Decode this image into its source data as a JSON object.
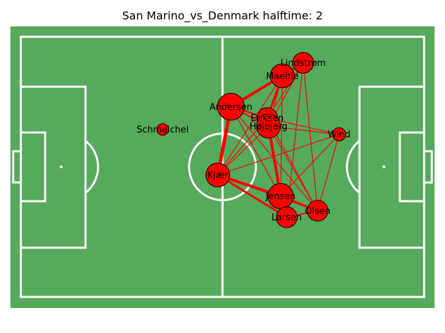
{
  "title": "San Marino_vs_Denmark halftime: 2",
  "colors": {
    "pitch": "#55aa5b",
    "lines": "#ffffff",
    "node": "#ff0000",
    "node_edge": "#000000",
    "edge": "#ff0000"
  },
  "chart_data": {
    "type": "network",
    "pitch": {
      "length": 120,
      "width": 80
    },
    "nodes": [
      {
        "name": "Lindstrøm",
        "x": 84.0,
        "y": 72.0,
        "size": 1.0
      },
      {
        "name": "Maehle",
        "x": 77.8,
        "y": 68.0,
        "size": 1.2
      },
      {
        "name": "Andersen",
        "x": 62.5,
        "y": 58.5,
        "size": 1.4
      },
      {
        "name": "Eriksen",
        "x": 73.3,
        "y": 55.0,
        "size": 1.0
      },
      {
        "name": "Højbjerg",
        "x": 73.7,
        "y": 52.5,
        "size": 1.2
      },
      {
        "name": "Schmeichel",
        "x": 42.2,
        "y": 51.5,
        "size": 0.4
      },
      {
        "name": "Wind",
        "x": 94.7,
        "y": 50.0,
        "size": 0.5
      },
      {
        "name": "Kjær",
        "x": 58.6,
        "y": 37.5,
        "size": 1.2
      },
      {
        "name": "Jensen",
        "x": 77.3,
        "y": 31.0,
        "size": 1.3
      },
      {
        "name": "Olsen",
        "x": 88.3,
        "y": 26.5,
        "size": 1.0
      },
      {
        "name": "Larsen",
        "x": 79.1,
        "y": 24.5,
        "size": 1.0
      }
    ],
    "edges": [
      {
        "from": "Andersen",
        "to": "Maehle",
        "weight": 4
      },
      {
        "from": "Andersen",
        "to": "Kjær",
        "weight": 5
      },
      {
        "from": "Andersen",
        "to": "Eriksen",
        "weight": 2
      },
      {
        "from": "Andersen",
        "to": "Højbjerg",
        "weight": 2
      },
      {
        "from": "Andersen",
        "to": "Jensen",
        "weight": 1
      },
      {
        "from": "Andersen",
        "to": "Lindstrøm",
        "weight": 1
      },
      {
        "from": "Andersen",
        "to": "Olsen",
        "weight": 1
      },
      {
        "from": "Maehle",
        "to": "Lindstrøm",
        "weight": 3
      },
      {
        "from": "Maehle",
        "to": "Eriksen",
        "weight": 3
      },
      {
        "from": "Maehle",
        "to": "Højbjerg",
        "weight": 1
      },
      {
        "from": "Maehle",
        "to": "Jensen",
        "weight": 1
      },
      {
        "from": "Maehle",
        "to": "Kjær",
        "weight": 1
      },
      {
        "from": "Lindstrøm",
        "to": "Eriksen",
        "weight": 1
      },
      {
        "from": "Lindstrøm",
        "to": "Højbjerg",
        "weight": 1
      },
      {
        "from": "Lindstrøm",
        "to": "Olsen",
        "weight": 1
      },
      {
        "from": "Lindstrøm",
        "to": "Larsen",
        "weight": 1
      },
      {
        "from": "Eriksen",
        "to": "Højbjerg",
        "weight": 2
      },
      {
        "from": "Eriksen",
        "to": "Kjær",
        "weight": 1
      },
      {
        "from": "Eriksen",
        "to": "Wind",
        "weight": 1
      },
      {
        "from": "Eriksen",
        "to": "Olsen",
        "weight": 1
      },
      {
        "from": "Eriksen",
        "to": "Jensen",
        "weight": 1
      },
      {
        "from": "Højbjerg",
        "to": "Jensen",
        "weight": 4
      },
      {
        "from": "Højbjerg",
        "to": "Kjær",
        "weight": 1
      },
      {
        "from": "Højbjerg",
        "to": "Wind",
        "weight": 1
      },
      {
        "from": "Højbjerg",
        "to": "Olsen",
        "weight": 1
      },
      {
        "from": "Kjær",
        "to": "Jensen",
        "weight": 4
      },
      {
        "from": "Kjær",
        "to": "Larsen",
        "weight": 3
      },
      {
        "from": "Kjær",
        "to": "Olsen",
        "weight": 2
      },
      {
        "from": "Kjær",
        "to": "Wind",
        "weight": 1
      },
      {
        "from": "Jensen",
        "to": "Olsen",
        "weight": 3
      },
      {
        "from": "Jensen",
        "to": "Larsen",
        "weight": 2
      },
      {
        "from": "Jensen",
        "to": "Wind",
        "weight": 1
      },
      {
        "from": "Larsen",
        "to": "Olsen",
        "weight": 2
      },
      {
        "from": "Olsen",
        "to": "Wind",
        "weight": 1
      }
    ]
  }
}
